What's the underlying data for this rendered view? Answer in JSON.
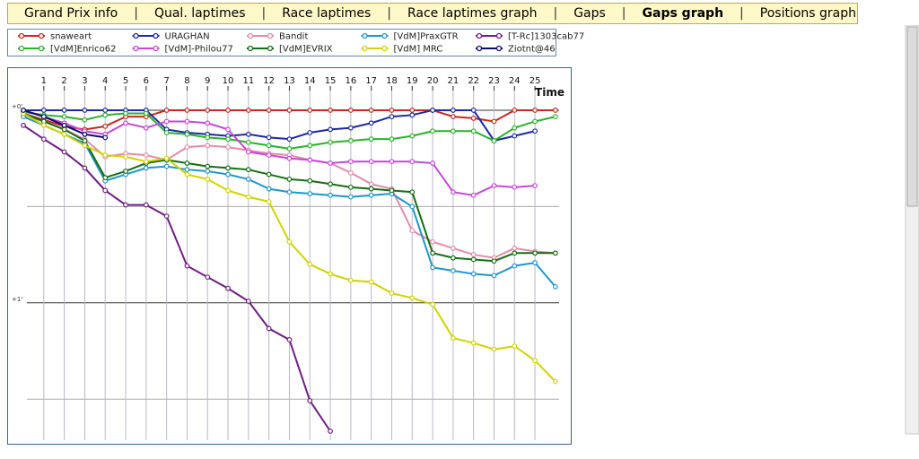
{
  "nav": [
    "Grand Prix info",
    "Qual. laptimes",
    "Race laptimes",
    "Race laptimes graph",
    "Gaps",
    "Gaps graph",
    "Positions graph"
  ],
  "nav_active": 5,
  "chart_data": {
    "type": "line",
    "x_label": "Time",
    "x": [
      0,
      1,
      2,
      3,
      4,
      5,
      6,
      7,
      8,
      9,
      10,
      11,
      12,
      13,
      14,
      15,
      16,
      17,
      18,
      19,
      20,
      21,
      22,
      23,
      24,
      25,
      26
    ],
    "xlim": [
      -0.79,
      26.75
    ],
    "xticks": [
      1,
      2,
      3,
      4,
      5,
      6,
      7,
      8,
      9,
      10,
      11,
      12,
      13,
      14,
      15,
      16,
      17,
      18,
      19,
      20,
      21,
      22,
      23,
      24,
      25
    ],
    "ylim": [
      -13,
      100
    ],
    "yticks": [
      {
        "value": 0,
        "label": "+0'"
      },
      {
        "value": 30,
        "label": null
      },
      {
        "value": 60,
        "label": "+1'"
      },
      {
        "value": 90,
        "label": null
      }
    ],
    "grid": true,
    "series": [
      {
        "name": "snaweart",
        "color": "#c8281e",
        "values": [
          1,
          3,
          5,
          6,
          5,
          2,
          2,
          0,
          0,
          0,
          0,
          0,
          0,
          0,
          0,
          0,
          0,
          0,
          0,
          0,
          0,
          2,
          2.5,
          3.5,
          0,
          0,
          0
        ]
      },
      {
        "name": "URAGHAN",
        "color": "#1c2aa0",
        "values": [
          0,
          0,
          0,
          0,
          0,
          0,
          0,
          6,
          7,
          7.5,
          8,
          7.5,
          8.5,
          9,
          7,
          6,
          5.5,
          4,
          2,
          1.5,
          0,
          0,
          0,
          9.5,
          8,
          6.5,
          null
        ]
      },
      {
        "name": "Bandit",
        "color": "#e68aa8",
        "values": [
          1.5,
          3.5,
          6,
          9,
          14.5,
          13.5,
          14,
          15.5,
          11.5,
          11,
          11.5,
          12.5,
          13.5,
          14,
          15.5,
          16.5,
          19.5,
          23,
          24.5,
          37.5,
          41,
          43,
          45,
          46,
          43,
          44,
          44.5
        ]
      },
      {
        "name": "[VdM]PraxGTR",
        "color": "#1e96cc",
        "values": [
          2,
          4.7,
          7.5,
          10.3,
          22,
          20,
          18,
          17.5,
          18.5,
          19,
          20,
          21.5,
          24.5,
          25.5,
          26,
          26.5,
          27,
          26.5,
          26,
          30,
          49,
          50,
          51,
          51.5,
          48.5,
          47.5,
          55
        ]
      },
      {
        "name": "[T-Rc]1303cab77",
        "color": "#6e1e82",
        "values": [
          4.7,
          9,
          13,
          18,
          25,
          29.5,
          29.5,
          33,
          48.5,
          52,
          55.5,
          59.5,
          68,
          71.5,
          90.5,
          100,
          null,
          null,
          null,
          null,
          null,
          null,
          null,
          null,
          null,
          null,
          null
        ]
      },
      {
        "name": "[VdM]Enrico62",
        "color": "#28b428",
        "values": [
          0.5,
          1.5,
          2,
          3,
          1.5,
          1,
          1,
          7,
          7.5,
          8.5,
          9,
          10,
          11,
          12,
          11,
          10,
          9.5,
          9,
          9,
          8,
          6.5,
          6.5,
          6.5,
          9.5,
          5.5,
          3.5,
          2
        ]
      },
      {
        "name": "[VdM]-Philou77",
        "color": "#c846dc",
        "values": [
          0,
          2,
          4,
          6.5,
          7.5,
          4,
          5.5,
          3.5,
          3.5,
          4,
          6,
          13,
          14,
          15,
          15.5,
          16.5,
          16,
          16,
          16,
          16,
          16.5,
          25.5,
          26.5,
          23.5,
          24,
          23.5,
          null
        ]
      },
      {
        "name": "[VdM]EVRIX",
        "color": "#146e14",
        "values": [
          1,
          3.5,
          6,
          9.5,
          21,
          19,
          16.5,
          15.5,
          16.5,
          17.5,
          18,
          18.5,
          20,
          21.5,
          22,
          23,
          24,
          24.5,
          25,
          25.5,
          44.5,
          46,
          46.5,
          47,
          44.5,
          44.5,
          44.5
        ]
      },
      {
        "name": "[VdM] MRC",
        "color": "#d2d200",
        "values": [
          1,
          4.7,
          7.5,
          11,
          14,
          14.5,
          16,
          15,
          20,
          21.5,
          25,
          27,
          28.5,
          41,
          48,
          51,
          53,
          53.5,
          57,
          58.5,
          60.5,
          71,
          72.5,
          74.5,
          73.5,
          78,
          84.5
        ]
      },
      {
        "name": "Ziotnt@46",
        "color": "#0a0a6e",
        "values": [
          0,
          2,
          4.7,
          7.5,
          8.5,
          null,
          null,
          null,
          null,
          null,
          null,
          null,
          null,
          null,
          null,
          null,
          null,
          null,
          null,
          null,
          null,
          null,
          null,
          null,
          null,
          null,
          null
        ]
      }
    ]
  }
}
